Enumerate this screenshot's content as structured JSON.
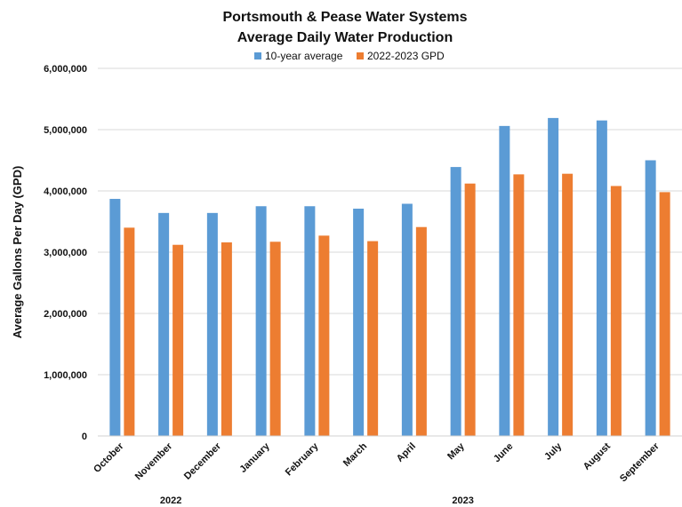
{
  "chart_data": {
    "type": "bar",
    "title": [
      "Portsmouth & Pease Water Systems",
      "Average Daily Water Production"
    ],
    "ylabel": "Average Gallons Per Day (GPD)",
    "categories": [
      "October",
      "November",
      "December",
      "January",
      "February",
      "March",
      "April",
      "May",
      "June",
      "July",
      "August",
      "September"
    ],
    "year_labels": [
      {
        "label": "2022",
        "from": "October",
        "to": "December"
      },
      {
        "label": "2023",
        "from": "January",
        "to": "September"
      }
    ],
    "series": [
      {
        "name": "10-year average",
        "color": "#5b9bd5",
        "values": [
          3870000,
          3640000,
          3640000,
          3750000,
          3750000,
          3710000,
          3790000,
          4390000,
          5060000,
          5190000,
          5150000,
          4500000
        ]
      },
      {
        "name": "2022-2023 GPD",
        "color": "#ed7d31",
        "values": [
          3400000,
          3120000,
          3160000,
          3170000,
          3270000,
          3180000,
          3410000,
          4120000,
          4270000,
          4280000,
          4080000,
          3980000
        ]
      }
    ],
    "ylim": [
      0,
      6000000
    ],
    "yticks": [
      0,
      1000000,
      2000000,
      3000000,
      4000000,
      5000000,
      6000000
    ],
    "ytick_labels": [
      "0",
      "1,000,000",
      "2,000,000",
      "3,000,000",
      "4,000,000",
      "5,000,000",
      "6,000,000"
    ],
    "grid": true,
    "legend": "top"
  }
}
